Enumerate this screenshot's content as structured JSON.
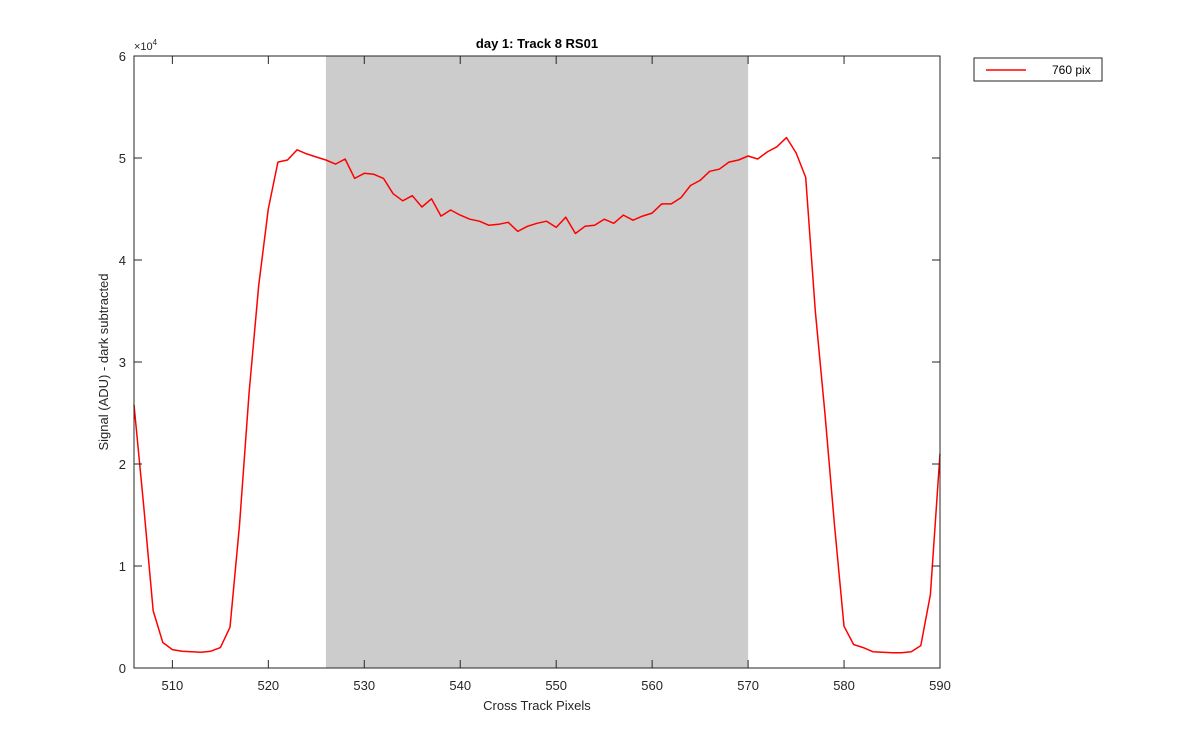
{
  "chart_data": {
    "type": "line",
    "title": "day 1: Track 8  RS01",
    "xlabel": "Cross Track Pixels",
    "ylabel": "Signal (ADU) - dark subtracted",
    "xlim": [
      506,
      590
    ],
    "ylim": [
      0,
      60000
    ],
    "y_exponent_label": "×10",
    "y_exponent_power": "4",
    "x_ticks": [
      510,
      520,
      530,
      540,
      550,
      560,
      570,
      580,
      590
    ],
    "x_tick_labels": [
      "510",
      "520",
      "530",
      "540",
      "550",
      "560",
      "570",
      "580",
      "590"
    ],
    "y_ticks": [
      0,
      10000,
      20000,
      30000,
      40000,
      50000,
      60000
    ],
    "y_tick_labels": [
      "0",
      "1",
      "2",
      "3",
      "4",
      "5",
      "6"
    ],
    "shaded_region": {
      "x_start": 526,
      "x_end": 570,
      "color": "#cccccc"
    },
    "grid": false,
    "legend_position": "outside top-right",
    "series": [
      {
        "name": "760 pix",
        "color": "#ff0000",
        "x": [
          506,
          507,
          508,
          509,
          510,
          511,
          512,
          513,
          514,
          515,
          516,
          517,
          518,
          519,
          520,
          521,
          522,
          523,
          524,
          525,
          526,
          527,
          528,
          529,
          530,
          531,
          532,
          533,
          534,
          535,
          536,
          537,
          538,
          539,
          540,
          541,
          542,
          543,
          544,
          545,
          546,
          547,
          548,
          549,
          550,
          551,
          552,
          553,
          554,
          555,
          556,
          557,
          558,
          559,
          560,
          561,
          562,
          563,
          564,
          565,
          566,
          567,
          568,
          569,
          570,
          571,
          572,
          573,
          574,
          575,
          576,
          577,
          578,
          579,
          580,
          581,
          582,
          583,
          584,
          585,
          586,
          587,
          588,
          589,
          590
        ],
        "values": [
          25800,
          16000,
          5600,
          2500,
          1800,
          1650,
          1600,
          1550,
          1650,
          2000,
          4000,
          14000,
          27000,
          37500,
          45000,
          49600,
          49800,
          50800,
          50400,
          50100,
          49800,
          49400,
          49900,
          48000,
          48500,
          48400,
          48000,
          46500,
          45800,
          46300,
          45200,
          46000,
          44300,
          44900,
          44400,
          44000,
          43800,
          43400,
          43500,
          43700,
          42800,
          43300,
          43600,
          43800,
          43200,
          44200,
          42600,
          43300,
          43400,
          44000,
          43600,
          44400,
          43900,
          44300,
          44600,
          45500,
          45500,
          46100,
          47300,
          47800,
          48700,
          48900,
          49600,
          49800,
          50200,
          49900,
          50600,
          51100,
          52000,
          50500,
          48100,
          35000,
          25000,
          14000,
          4100,
          2300,
          2000,
          1600,
          1550,
          1500,
          1500,
          1600,
          2200,
          7200,
          21000
        ]
      }
    ]
  }
}
